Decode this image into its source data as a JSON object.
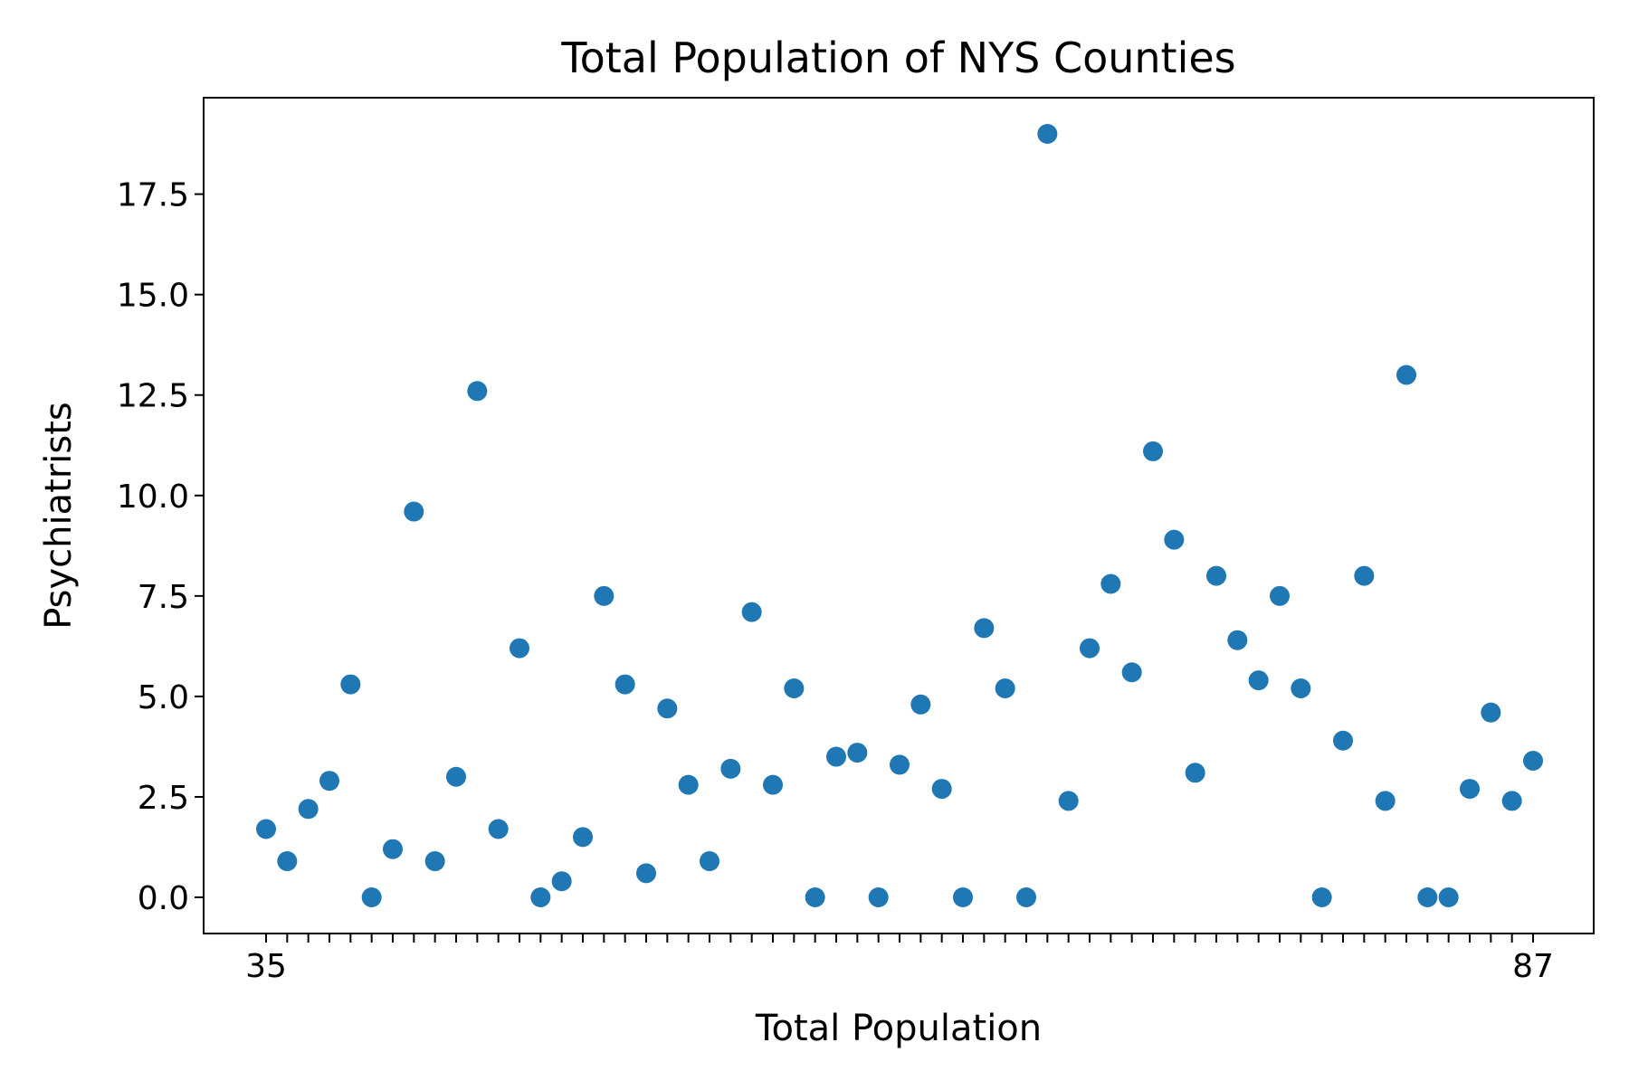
{
  "chart_data": {
    "type": "scatter",
    "title": "Total Population of NYS Counties",
    "xlabel": "Total Population",
    "ylabel": "Psychiatrists",
    "x_axis_kind": "categorical",
    "x_tick_labels_note": "overlapping illegible labels",
    "x_tick_first": "35",
    "x_tick_last": "87",
    "ylim": [
      -0.9,
      19.9
    ],
    "y_ticks": [
      "0.0",
      "2.5",
      "5.0",
      "7.5",
      "10.0",
      "12.5",
      "15.0",
      "17.5"
    ],
    "y_tick_values": [
      0,
      2.5,
      5,
      7.5,
      10,
      12.5,
      15,
      17.5
    ],
    "marker_color": "#1f77b4",
    "grid": false,
    "values": [
      1.7,
      0.9,
      2.2,
      2.9,
      5.3,
      0.0,
      1.2,
      9.6,
      0.9,
      3.0,
      12.6,
      1.7,
      6.2,
      0.0,
      0.4,
      1.5,
      7.5,
      5.3,
      0.6,
      4.7,
      2.8,
      0.9,
      3.2,
      7.1,
      2.8,
      5.2,
      0.0,
      3.5,
      3.6,
      0.0,
      3.3,
      4.8,
      2.7,
      0.0,
      6.7,
      5.2,
      0.0,
      19.0,
      2.4,
      6.2,
      7.8,
      5.6,
      11.1,
      8.9,
      3.1,
      8.0,
      6.4,
      5.4,
      7.5,
      5.2,
      0.0,
      3.9,
      8.0,
      2.4,
      13.0,
      0.0,
      0.0,
      2.7,
      4.6,
      2.4,
      3.4
    ]
  }
}
